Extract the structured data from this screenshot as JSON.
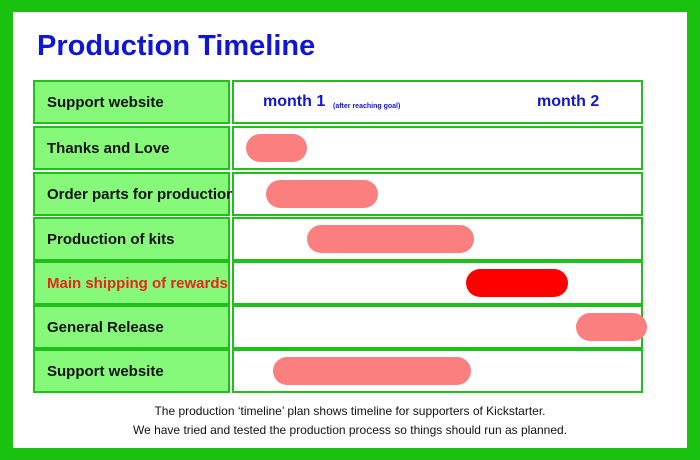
{
  "title": "Production Timeline",
  "header_row": {
    "label": "Support website",
    "month1": "month 1",
    "month1_note": "(after reaching goal)",
    "month2": "month 2"
  },
  "colors": {
    "frame": "#19c20e",
    "label_fill": "#86f97b",
    "border": "#1fc01a",
    "title": "#0f16d6",
    "bar": "#fb7f7f",
    "bar_highlight": "#ff0000",
    "highlight_text": "#e8261c"
  },
  "tasks": [
    {
      "label": "Thanks and Love",
      "start": 0.0,
      "end": 0.3
    },
    {
      "label": "Order parts for production",
      "start": 0.1,
      "end": 0.65
    },
    {
      "label": "Production of kits",
      "start": 0.3,
      "end": 1.12
    },
    {
      "label": "Main shipping of rewards",
      "start": 1.08,
      "end": 1.58,
      "highlight": true
    },
    {
      "label": "General Release",
      "start": 1.62,
      "end": 1.97
    },
    {
      "label": "Support website",
      "start": 0.13,
      "end": 1.1
    }
  ],
  "caption": {
    "line1": "The production ‘timeline’ plan shows timeline for supporters of Kickstarter.",
    "line2": "We have tried and tested the production process so things should run as planned."
  }
}
